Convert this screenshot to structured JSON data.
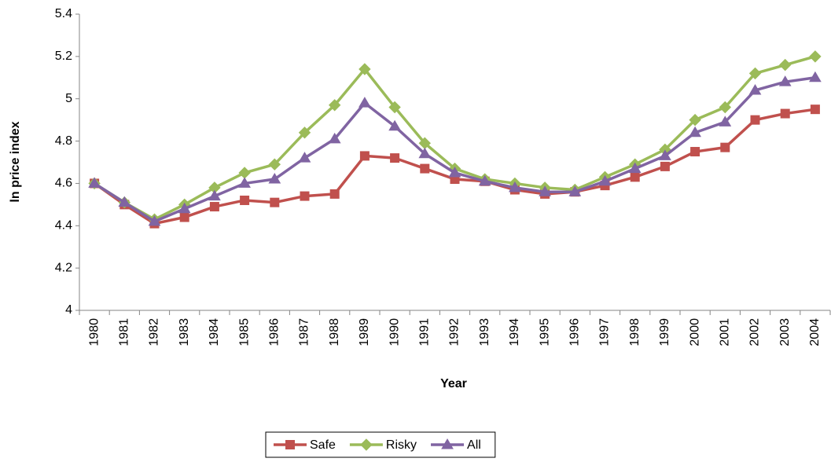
{
  "chart_data": {
    "type": "line",
    "x_label": "Year",
    "y_label": "ln price index",
    "categories": [
      "1980",
      "1981",
      "1982",
      "1983",
      "1984",
      "1985",
      "1986",
      "1987",
      "1988",
      "1989",
      "1990",
      "1991",
      "1992",
      "1993",
      "1994",
      "1995",
      "1996",
      "1997",
      "1998",
      "1999",
      "2000",
      "2001",
      "2002",
      "2003",
      "2004"
    ],
    "series": [
      {
        "name": "Safe",
        "color": "#c0504d",
        "marker": "square",
        "values": [
          4.6,
          4.5,
          4.41,
          4.44,
          4.49,
          4.52,
          4.51,
          4.54,
          4.55,
          4.73,
          4.72,
          4.67,
          4.62,
          4.61,
          4.57,
          4.55,
          4.56,
          4.59,
          4.63,
          4.68,
          4.75,
          4.77,
          4.9,
          4.93,
          4.95
        ]
      },
      {
        "name": "Risky",
        "color": "#9bbb59",
        "marker": "diamond",
        "values": [
          4.6,
          4.51,
          4.43,
          4.5,
          4.58,
          4.65,
          4.69,
          4.84,
          4.97,
          5.14,
          4.96,
          4.79,
          4.67,
          4.62,
          4.6,
          4.58,
          4.57,
          4.63,
          4.69,
          4.76,
          4.9,
          4.96,
          5.12,
          5.16,
          5.2
        ]
      },
      {
        "name": "All",
        "color": "#8064a2",
        "marker": "triangle",
        "values": [
          4.6,
          4.51,
          4.42,
          4.48,
          4.54,
          4.6,
          4.62,
          4.72,
          4.81,
          4.98,
          4.87,
          4.74,
          4.65,
          4.61,
          4.58,
          4.56,
          4.56,
          4.61,
          4.67,
          4.73,
          4.84,
          4.89,
          5.04,
          5.08,
          5.1
        ]
      }
    ],
    "ylim": [
      4,
      5.4
    ],
    "yticks": [
      4,
      4.2,
      4.4,
      4.6,
      4.8,
      5,
      5.2,
      5.4
    ],
    "grid": false,
    "legend": "bottom"
  }
}
